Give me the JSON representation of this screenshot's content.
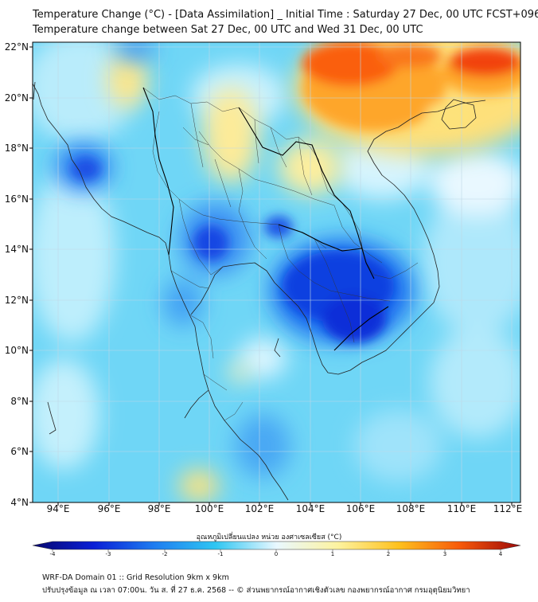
{
  "header": {
    "title_line1": "Temperature Change (°C) - [Data Assimilation] _ Initial Time : Saturday 27 Dec, 00 UTC FCST+096",
    "title_line2": "Temperature change between Sat 27 Dec, 00 UTC and Wed 31 Dec, 00 UTC"
  },
  "map": {
    "lat_labels": [
      "22°N",
      "20°N",
      "18°N",
      "16°N",
      "14°N",
      "12°N",
      "10°N",
      "8°N",
      "6°N",
      "4°N"
    ],
    "lon_labels": [
      "94°E",
      "96°E",
      "98°E",
      "100°E",
      "102°E",
      "104°E",
      "106°E",
      "108°E",
      "110°E",
      "112°E"
    ],
    "lat_range": [
      4,
      22.2
    ],
    "lon_range": [
      93,
      112.5
    ]
  },
  "colorbar": {
    "title": "อุณหภูมิเปลี่ยนแปลง หน่วย องศาเซลเซียส (°C)",
    "ticks": [
      "-4",
      "-3",
      "-2",
      "-1",
      "0",
      "1",
      "2",
      "3",
      "4"
    ],
    "range": [
      -4,
      4
    ],
    "colors": [
      "#08086e",
      "#0a1fd6",
      "#1f7df0",
      "#2fc6f2",
      "#e9f8ff",
      "#fdf3a0",
      "#fec11e",
      "#f75a0a",
      "#9c0808"
    ]
  },
  "footer": {
    "line1": "WRF-DA Domain 01 :: Grid Resolution 9km x 9km",
    "line2": "ปรับปรุงข้อมูล ณ เวลา 07:00น. วัน ส. ที่ 27 ธ.ค. 2568 -- © ส่วนพยากรณ์อากาศเชิงตัวเลข กองพยากรณ์อากาศ กรมอุตุนิยมวิทยา"
  }
}
